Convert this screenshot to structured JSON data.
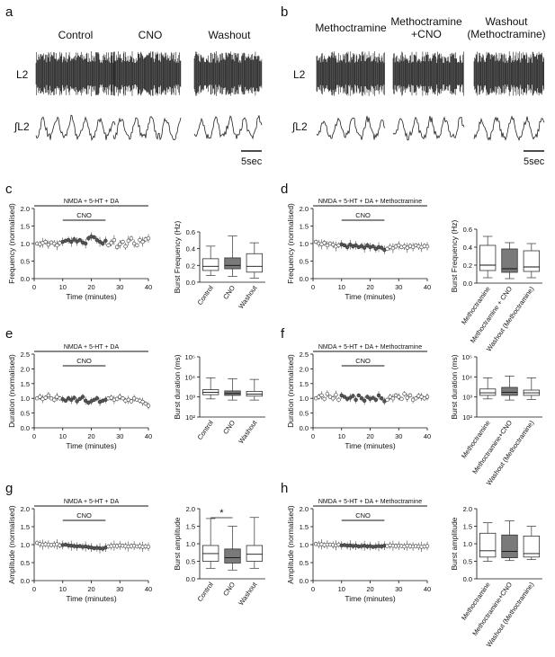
{
  "figure": {
    "panel_letters": [
      "a",
      "b",
      "c",
      "d",
      "e",
      "f",
      "g",
      "h"
    ],
    "trace_rows": {
      "raw": "L2",
      "integrated": "∫L2"
    },
    "scale_bar": "5sec",
    "panel_a_conditions": [
      "Control",
      "CNO",
      "Washout"
    ],
    "panel_b_conditions": [
      "Methoctramine",
      "Methoctramine\n+CNO",
      "Washout\n(Methoctramine)"
    ],
    "timeline": {
      "xlabel": "Time (minutes)",
      "xticks": [
        0,
        10,
        20,
        30,
        40
      ],
      "bar_label_left": "NMDA + 5-HT + DA",
      "bar_label_right": "NMDA + 5-HT + DA + Methoctramine",
      "drug_label": "CNO",
      "drug_window": [
        10,
        25
      ],
      "ylabels": [
        "Frequency (normalised)",
        "Duration (normalised)",
        "Amplitude (normalised)"
      ]
    },
    "box_ylabels": [
      "Burst Frequency (Hz)",
      "Burst duration (ms)",
      "Burst amplitude"
    ],
    "box_categories_left": [
      "Control",
      "CNO",
      "Washout"
    ],
    "box_categories_right": [
      "Methoctramine",
      "Methoctramine + CNO",
      "Washout (Methoctramine)"
    ],
    "box_categories_right_h": [
      "Methoctramine",
      "Methoctramine+CNO",
      "Washout (Methoctramine)"
    ],
    "significance": "*",
    "colors": {
      "control_fill": "#ffffff",
      "cno_fill": "#7a7a7a",
      "line": "#222222"
    }
  },
  "chart_data": [
    {
      "panel": "c",
      "type": "scatter",
      "xlabel": "Time (minutes)",
      "ylabel": "Frequency (normalised)",
      "xlim": [
        0,
        40
      ],
      "ylim": [
        0,
        2.0
      ],
      "yticks": [
        0,
        0.5,
        1.0,
        1.5,
        2.0
      ],
      "x": [
        1,
        2,
        3,
        4,
        5,
        6,
        7,
        8,
        9,
        10,
        11,
        12,
        13,
        14,
        15,
        16,
        17,
        18,
        19,
        20,
        21,
        22,
        23,
        24,
        25,
        26,
        27,
        28,
        29,
        30,
        31,
        32,
        33,
        34,
        35,
        36,
        37,
        38,
        39,
        40
      ],
      "y": [
        1.0,
        0.98,
        1.02,
        1.05,
        0.97,
        1.03,
        1.0,
        0.95,
        1.02,
        1.05,
        1.08,
        1.1,
        1.05,
        1.12,
        1.06,
        1.1,
        1.03,
        1.0,
        1.15,
        1.2,
        1.18,
        1.1,
        1.05,
        1.0,
        1.08,
        0.95,
        1.02,
        1.1,
        0.9,
        0.98,
        1.05,
        0.92,
        1.08,
        1.15,
        1.0,
        0.95,
        1.1,
        1.05,
        1.12,
        1.15
      ]
    },
    {
      "panel": "c-box",
      "type": "box",
      "ylabel": "Burst Frequency (Hz)",
      "ylim": [
        0.0,
        0.6
      ],
      "yticks": [
        0.0,
        0.2,
        0.4,
        0.6
      ],
      "categories": [
        "Control",
        "CNO",
        "Washout"
      ],
      "series": [
        {
          "min": 0.08,
          "q1": 0.14,
          "median": 0.19,
          "q3": 0.28,
          "max": 0.43
        },
        {
          "min": 0.07,
          "q1": 0.16,
          "median": 0.2,
          "q3": 0.29,
          "max": 0.55
        },
        {
          "min": 0.05,
          "q1": 0.12,
          "median": 0.19,
          "q3": 0.34,
          "max": 0.47
        }
      ]
    },
    {
      "panel": "d",
      "type": "scatter",
      "xlabel": "Time (minutes)",
      "ylabel": "Frequency (normalised)",
      "xlim": [
        0,
        40
      ],
      "ylim": [
        0,
        2.0
      ],
      "yticks": [
        0,
        0.5,
        1.0,
        1.5,
        2.0
      ],
      "x": [
        1,
        2,
        3,
        4,
        5,
        6,
        7,
        8,
        9,
        10,
        11,
        12,
        13,
        14,
        15,
        16,
        17,
        18,
        19,
        20,
        21,
        22,
        23,
        24,
        25,
        26,
        27,
        28,
        29,
        30,
        31,
        32,
        33,
        34,
        35,
        36,
        37,
        38,
        39,
        40
      ],
      "y": [
        1.05,
        1.0,
        0.98,
        1.02,
        0.95,
        1.0,
        0.97,
        0.92,
        0.95,
        0.98,
        0.95,
        0.9,
        0.97,
        0.92,
        0.95,
        0.9,
        0.93,
        0.88,
        0.95,
        0.9,
        0.92,
        0.85,
        0.9,
        0.88,
        0.82,
        0.85,
        0.9,
        0.87,
        0.92,
        0.95,
        0.9,
        0.92,
        0.88,
        0.93,
        0.9,
        0.95,
        0.92,
        0.9,
        0.93,
        0.92
      ]
    },
    {
      "panel": "d-box",
      "type": "box",
      "ylabel": "Burst Frequency (Hz)",
      "ylim": [
        0.0,
        0.6
      ],
      "yticks": [
        0.0,
        0.2,
        0.4,
        0.6
      ],
      "categories": [
        "Methoctramine",
        "Methoctramine + CNO",
        "Washout (Methoctramine)"
      ],
      "series": [
        {
          "min": 0.06,
          "q1": 0.14,
          "median": 0.2,
          "q3": 0.42,
          "max": 0.52
        },
        {
          "min": 0.05,
          "q1": 0.12,
          "median": 0.16,
          "q3": 0.38,
          "max": 0.45
        },
        {
          "min": 0.06,
          "q1": 0.13,
          "median": 0.18,
          "q3": 0.36,
          "max": 0.44
        }
      ]
    },
    {
      "panel": "e",
      "type": "scatter",
      "xlabel": "Time (minutes)",
      "ylabel": "Duration (normalised)",
      "xlim": [
        0,
        40
      ],
      "ylim": [
        0,
        2.5
      ],
      "yticks": [
        0,
        0.5,
        1.0,
        1.5,
        2.0,
        2.5
      ],
      "x": [
        1,
        2,
        3,
        4,
        5,
        6,
        7,
        8,
        9,
        10,
        11,
        12,
        13,
        14,
        15,
        16,
        17,
        18,
        19,
        20,
        21,
        22,
        23,
        24,
        25,
        26,
        27,
        28,
        29,
        30,
        31,
        32,
        33,
        34,
        35,
        36,
        37,
        38,
        39,
        40
      ],
      "y": [
        1.0,
        1.05,
        0.98,
        1.02,
        1.1,
        1.0,
        0.95,
        1.05,
        1.0,
        0.97,
        0.92,
        1.0,
        0.95,
        1.02,
        0.9,
        0.98,
        1.05,
        0.92,
        0.85,
        0.9,
        0.95,
        1.0,
        0.88,
        0.92,
        0.95,
        1.0,
        1.02,
        0.95,
        0.98,
        1.05,
        1.0,
        0.92,
        0.95,
        0.9,
        1.0,
        0.95,
        0.92,
        0.88,
        0.82,
        0.75
      ]
    },
    {
      "panel": "e-box",
      "type": "box",
      "ylabel": "Burst duration (ms)",
      "yscale": "log",
      "ylim": [
        100,
        100000
      ],
      "ytick_labels": [
        "10²",
        "10³",
        "10⁴",
        "10⁵"
      ],
      "categories": [
        "Control",
        "CNO",
        "Washout"
      ],
      "series": [
        {
          "min": 800,
          "q1": 1300,
          "median": 1700,
          "q3": 2300,
          "max": 9000
        },
        {
          "min": 700,
          "q1": 1200,
          "median": 1500,
          "q3": 2000,
          "max": 8000
        },
        {
          "min": 700,
          "q1": 1100,
          "median": 1400,
          "q3": 1900,
          "max": 7500
        }
      ]
    },
    {
      "panel": "f",
      "type": "scatter",
      "xlabel": "Time (minutes)",
      "ylabel": "Duration (normalised)",
      "xlim": [
        0,
        40
      ],
      "ylim": [
        0,
        2.5
      ],
      "yticks": [
        0,
        0.5,
        1.0,
        1.5,
        2.0,
        2.5
      ],
      "x": [
        1,
        2,
        3,
        4,
        5,
        6,
        7,
        8,
        9,
        10,
        11,
        12,
        13,
        14,
        15,
        16,
        17,
        18,
        19,
        20,
        21,
        22,
        23,
        24,
        25,
        26,
        27,
        28,
        29,
        30,
        31,
        32,
        33,
        34,
        35,
        36,
        37,
        38,
        39,
        40
      ],
      "y": [
        1.0,
        1.05,
        1.1,
        0.98,
        1.15,
        1.05,
        1.0,
        1.12,
        0.95,
        1.1,
        1.05,
        0.98,
        1.02,
        1.08,
        0.95,
        1.1,
        1.0,
        0.92,
        1.05,
        0.98,
        1.02,
        0.95,
        1.1,
        1.0,
        0.9,
        0.95,
        1.05,
        1.0,
        1.1,
        1.05,
        0.98,
        1.15,
        1.02,
        1.1,
        0.95,
        1.0,
        1.08,
        1.05,
        1.0,
        1.05
      ]
    },
    {
      "panel": "f-box",
      "type": "box",
      "ylabel": "Burst duration (ms)",
      "yscale": "log",
      "ylim": [
        100,
        100000
      ],
      "ytick_labels": [
        "10²",
        "10³",
        "10⁴",
        "10⁵"
      ],
      "categories": [
        "Methoctramine",
        "Methoctramine+CNO",
        "Washout (Methoctramine)"
      ],
      "series": [
        {
          "min": 800,
          "q1": 1200,
          "median": 1600,
          "q3": 2500,
          "max": 9000
        },
        {
          "min": 700,
          "q1": 1200,
          "median": 1700,
          "q3": 3000,
          "max": 11000
        },
        {
          "min": 750,
          "q1": 1200,
          "median": 1600,
          "q3": 2200,
          "max": 9000
        }
      ]
    },
    {
      "panel": "g",
      "type": "scatter",
      "xlabel": "Time (minutes)",
      "ylabel": "Amplitude (normalised)",
      "xlim": [
        0,
        40
      ],
      "ylim": [
        0,
        2.0
      ],
      "yticks": [
        0,
        0.5,
        1.0,
        1.5,
        2.0
      ],
      "x": [
        1,
        2,
        3,
        4,
        5,
        6,
        7,
        8,
        9,
        10,
        11,
        12,
        13,
        14,
        15,
        16,
        17,
        18,
        19,
        20,
        21,
        22,
        23,
        24,
        25,
        26,
        27,
        28,
        29,
        30,
        31,
        32,
        33,
        34,
        35,
        36,
        37,
        38,
        39,
        40
      ],
      "y": [
        1.05,
        1.02,
        1.0,
        1.01,
        1.0,
        0.99,
        1.0,
        1.01,
        0.98,
        0.99,
        1.0,
        0.98,
        0.97,
        0.96,
        0.95,
        0.96,
        0.94,
        0.95,
        0.93,
        0.92,
        0.9,
        0.91,
        0.9,
        0.89,
        0.92,
        0.95,
        0.96,
        0.97,
        0.96,
        0.98,
        0.97,
        0.96,
        0.95,
        0.96,
        0.97,
        0.95,
        0.96,
        0.94,
        0.95,
        0.94
      ]
    },
    {
      "panel": "g-box",
      "type": "box",
      "ylabel": "Burst amplitude",
      "ylim": [
        0,
        2.0
      ],
      "yticks": [
        0,
        0.5,
        1.0,
        1.5,
        2.0
      ],
      "categories": [
        "Control",
        "CNO",
        "Washout"
      ],
      "series": [
        {
          "min": 0.3,
          "q1": 0.5,
          "median": 0.72,
          "q3": 0.95,
          "max": 1.72
        },
        {
          "min": 0.25,
          "q1": 0.45,
          "median": 0.6,
          "q3": 0.85,
          "max": 1.5
        },
        {
          "min": 0.3,
          "q1": 0.5,
          "median": 0.7,
          "q3": 0.95,
          "max": 1.75
        }
      ]
    },
    {
      "panel": "h",
      "type": "scatter",
      "xlabel": "Time (minutes)",
      "ylabel": "Amplitude (normalised)",
      "xlim": [
        0,
        40
      ],
      "ylim": [
        0,
        2.0
      ],
      "yticks": [
        0,
        0.5,
        1.0,
        1.5,
        2.0
      ],
      "x": [
        1,
        2,
        3,
        4,
        5,
        6,
        7,
        8,
        9,
        10,
        11,
        12,
        13,
        14,
        15,
        16,
        17,
        18,
        19,
        20,
        21,
        22,
        23,
        24,
        25,
        26,
        27,
        28,
        29,
        30,
        31,
        32,
        33,
        34,
        35,
        36,
        37,
        38,
        39,
        40
      ],
      "y": [
        1.02,
        1.0,
        1.01,
        0.99,
        1.0,
        1.0,
        0.99,
        0.98,
        1.0,
        0.98,
        0.99,
        0.97,
        0.98,
        0.96,
        0.97,
        0.95,
        0.96,
        0.97,
        0.95,
        0.96,
        0.94,
        0.95,
        0.96,
        0.95,
        0.97,
        0.96,
        0.98,
        0.97,
        0.96,
        0.97,
        0.96,
        0.95,
        0.97,
        0.96,
        0.95,
        0.96,
        0.95,
        0.94,
        0.95,
        0.96
      ]
    },
    {
      "panel": "h-box",
      "type": "box",
      "ylabel": "Burst amplitude",
      "ylim": [
        0,
        2.0
      ],
      "yticks": [
        0,
        0.5,
        1.0,
        1.5,
        2.0
      ],
      "categories": [
        "Methoctramine",
        "Methoctramine+CNO",
        "Washout (Methoctramine)"
      ],
      "series": [
        {
          "min": 0.5,
          "q1": 0.62,
          "median": 0.8,
          "q3": 1.3,
          "max": 1.6
        },
        {
          "min": 0.52,
          "q1": 0.6,
          "median": 0.78,
          "q3": 1.25,
          "max": 1.65
        },
        {
          "min": 0.55,
          "q1": 0.62,
          "median": 0.72,
          "q3": 1.22,
          "max": 1.5
        }
      ]
    }
  ]
}
